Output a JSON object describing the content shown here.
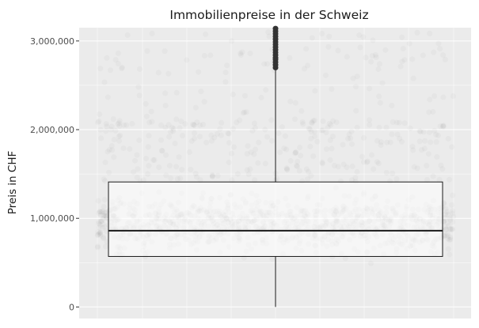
{
  "chart_data": {
    "type": "boxplot",
    "title": "Immobilienpreise in der Schweiz",
    "xlabel": "",
    "ylabel": "Preis in CHF",
    "ylim": [
      -130000,
      3150000
    ],
    "yticks": [
      0,
      1000000,
      2000000,
      3000000
    ],
    "ytick_labels": [
      "0",
      "1,000,000",
      "2,000,000",
      "3,000,000"
    ],
    "grid": true,
    "box": {
      "min": 0,
      "q1": 570000,
      "median": 860000,
      "q3": 1410000,
      "upper_whisker": 2680000,
      "outliers": [
        2700000,
        2730000,
        2760000,
        2790000,
        2810000,
        2840000,
        2870000,
        2900000,
        2930000,
        2960000,
        2990000,
        3020000,
        3050000,
        3080000,
        3110000,
        3140000
      ]
    },
    "colors": {
      "panel": "#ebebeb",
      "grid": "#ffffff",
      "box_fill": "#ffffff",
      "box_line": "#1a1a1a",
      "points": "#000000"
    }
  }
}
